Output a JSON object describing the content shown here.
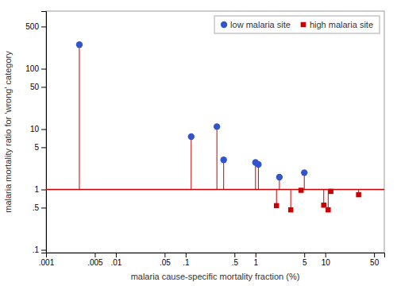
{
  "chart_data": {
    "type": "scatter",
    "xlabel": "malaria cause-specific mortality fraction (%)",
    "ylabel": "malaria mortality ratio for 'wrong' category",
    "log": true,
    "xlim": [
      0.001,
      70
    ],
    "ylim": [
      0.09,
      900
    ],
    "xticks": [
      {
        "value": 0.001,
        "label": ".001"
      },
      {
        "value": 0.005,
        "label": ".005"
      },
      {
        "value": 0.01,
        "label": ".01"
      },
      {
        "value": 0.05,
        "label": ".05"
      },
      {
        "value": 0.1,
        "label": ".1"
      },
      {
        "value": 0.5,
        "label": ".5"
      },
      1,
      5,
      10,
      50
    ],
    "yticks": [
      {
        "value": 0.1,
        "label": ".1"
      },
      {
        "value": 0.5,
        "label": ".5"
      },
      1,
      5,
      10,
      50,
      100,
      500
    ],
    "grid": false,
    "legend": "upper right",
    "color": "#cc0000",
    "reference_line": 1.0,
    "series": [
      {
        "name": "low malaria site",
        "color": "#3355cc",
        "marker": "circle",
        "x": [
          0.003,
          0.12,
          0.28,
          0.35,
          1.0,
          1.1,
          2.2,
          5.0
        ],
        "values": [
          250,
          7.5,
          11.0,
          3.1,
          2.8,
          2.6,
          1.6,
          1.9
        ]
      },
      {
        "name": "high malaria site",
        "color": "#cc0000",
        "marker": "square",
        "x": [
          2.0,
          3.2,
          4.5,
          9.5,
          11.0,
          12.0,
          30.0
        ],
        "values": [
          0.54,
          0.46,
          0.97,
          0.55,
          0.46,
          0.93,
          0.82
        ]
      }
    ]
  }
}
